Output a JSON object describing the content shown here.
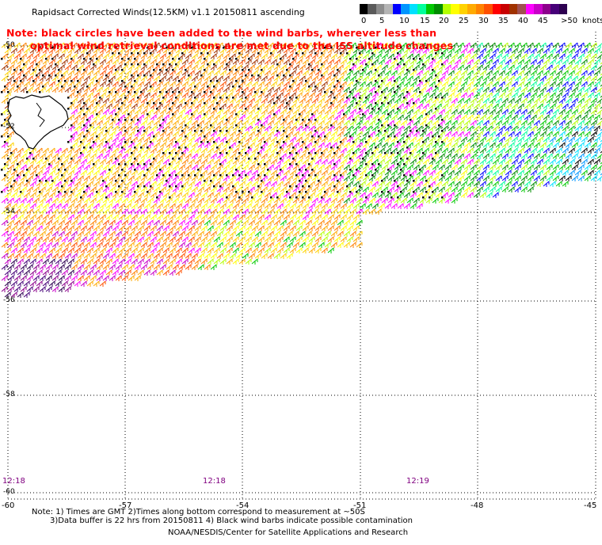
{
  "title": "Rapidsact Corrected Winds(12.5KM) v1.1 20150811 ascending",
  "note": {
    "line1": "Note: black circles have been added to the wind barbs, wherever less than",
    "line2": "optimal wind retrieval conditions are met due to the ISS altitude changes"
  },
  "legend": {
    "units": "knots",
    "colors": [
      "#000000",
      "#5a5a5a",
      "#8c8c8c",
      "#b4b4b4",
      "#0000ff",
      "#0096ff",
      "#00e0ff",
      "#00ff9b",
      "#00c800",
      "#008c00",
      "#b4ff00",
      "#ffff00",
      "#ffd200",
      "#ffaa00",
      "#ff8200",
      "#ff5000",
      "#ff0000",
      "#c80000",
      "#a03200",
      "#a05050",
      "#ff00ff",
      "#c800c8",
      "#8c008c",
      "#460078",
      "#2d0050"
    ],
    "labels": [
      "0",
      "5",
      "10",
      "15",
      "20",
      "25",
      "30",
      "35",
      "40",
      "45",
      ">50"
    ]
  },
  "map": {
    "lon_ticks": [
      "-60",
      "-57",
      "-54",
      "-51",
      "-48",
      "-45"
    ],
    "lat_ticks": [
      "-50",
      "-52",
      "-54",
      "-56",
      "-58",
      "-60"
    ],
    "pass_times": [
      "12:18",
      "12:18",
      "12:19"
    ]
  },
  "footer": {
    "line1": "Note: 1) Times are GMT 2)Times along bottom correspond to measurement at ~50S",
    "line2": "3)Data buffer is 22 hrs from 20150811 4) Black wind barbs indicate possible contamination",
    "credit": "NOAA/NESDIS/Center for Satellite Applications and Research"
  }
}
